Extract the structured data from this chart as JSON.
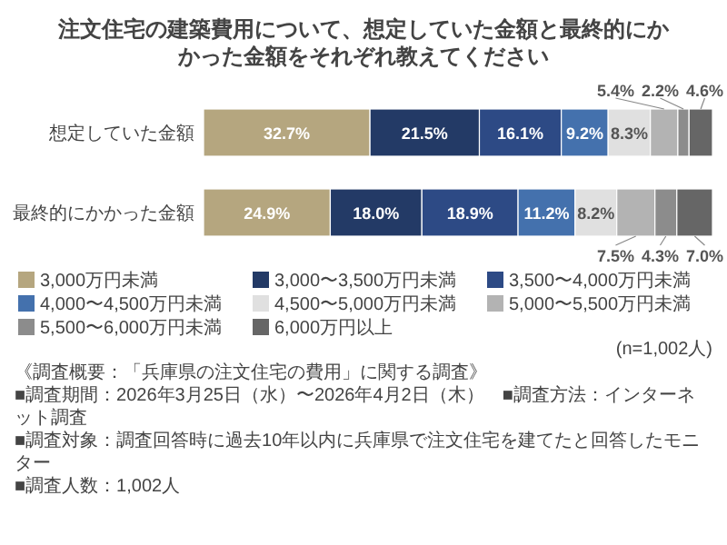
{
  "chart_data": {
    "type": "bar",
    "orientation": "horizontal",
    "stacked": true,
    "title": "注文住宅の建築費用について、想定していた金額と最終的にかかった金額をそれぞれ教えてください",
    "categories": [
      "想定していた金額",
      "最終的にかかった金額"
    ],
    "xlim": [
      0,
      100
    ],
    "legend": "bottom",
    "series": [
      {
        "name": "3,000万円未満",
        "color": "#b5a67f",
        "values": [
          32.7,
          24.9
        ],
        "value_labels": [
          "32.7%",
          "24.9%"
        ]
      },
      {
        "name": "3,000〜3,500万円未満",
        "color": "#233a66",
        "values": [
          21.5,
          18.0
        ],
        "value_labels": [
          "21.5%",
          "18.0%"
        ]
      },
      {
        "name": "3,500〜4,000万円未満",
        "color": "#2d4a85",
        "values": [
          16.1,
          18.9
        ],
        "value_labels": [
          "16.1%",
          "18.9%"
        ]
      },
      {
        "name": "4,000〜4,500万円未満",
        "color": "#4471ad",
        "values": [
          9.2,
          11.2
        ],
        "value_labels": [
          "9.2%",
          "11.2%"
        ]
      },
      {
        "name": "4,500〜5,000万円未満",
        "color": "#e0e0e0",
        "values": [
          8.3,
          8.2
        ],
        "value_labels": [
          "8.3%",
          "8.2%"
        ]
      },
      {
        "name": "5,000〜5,500万円未満",
        "color": "#b3b3b3",
        "values": [
          5.4,
          7.5
        ],
        "value_labels": [
          "5.4%",
          "7.5%"
        ]
      },
      {
        "name": "5,500〜6,000万円未満",
        "color": "#8c8c8c",
        "values": [
          2.2,
          4.3
        ],
        "value_labels": [
          "2.2%",
          "4.3%"
        ]
      },
      {
        "name": "6,000万円以上",
        "color": "#666666",
        "values": [
          4.6,
          7.0
        ],
        "value_labels": [
          "4.6%",
          "7.0%"
        ]
      }
    ],
    "annotations": [
      "(n=1,002人)",
      "《調査概要：「兵庫県の注文住宅の費用」に関する調査》",
      "■調査期間：2026年3月25日（水）〜2026年4月2日（木）　■調査方法：インターネット調査",
      "■調査対象：調査回答時に過去10年以内に兵庫県で注文住宅を建てたと回答したモニター",
      "■調査人数：1,002人"
    ]
  }
}
